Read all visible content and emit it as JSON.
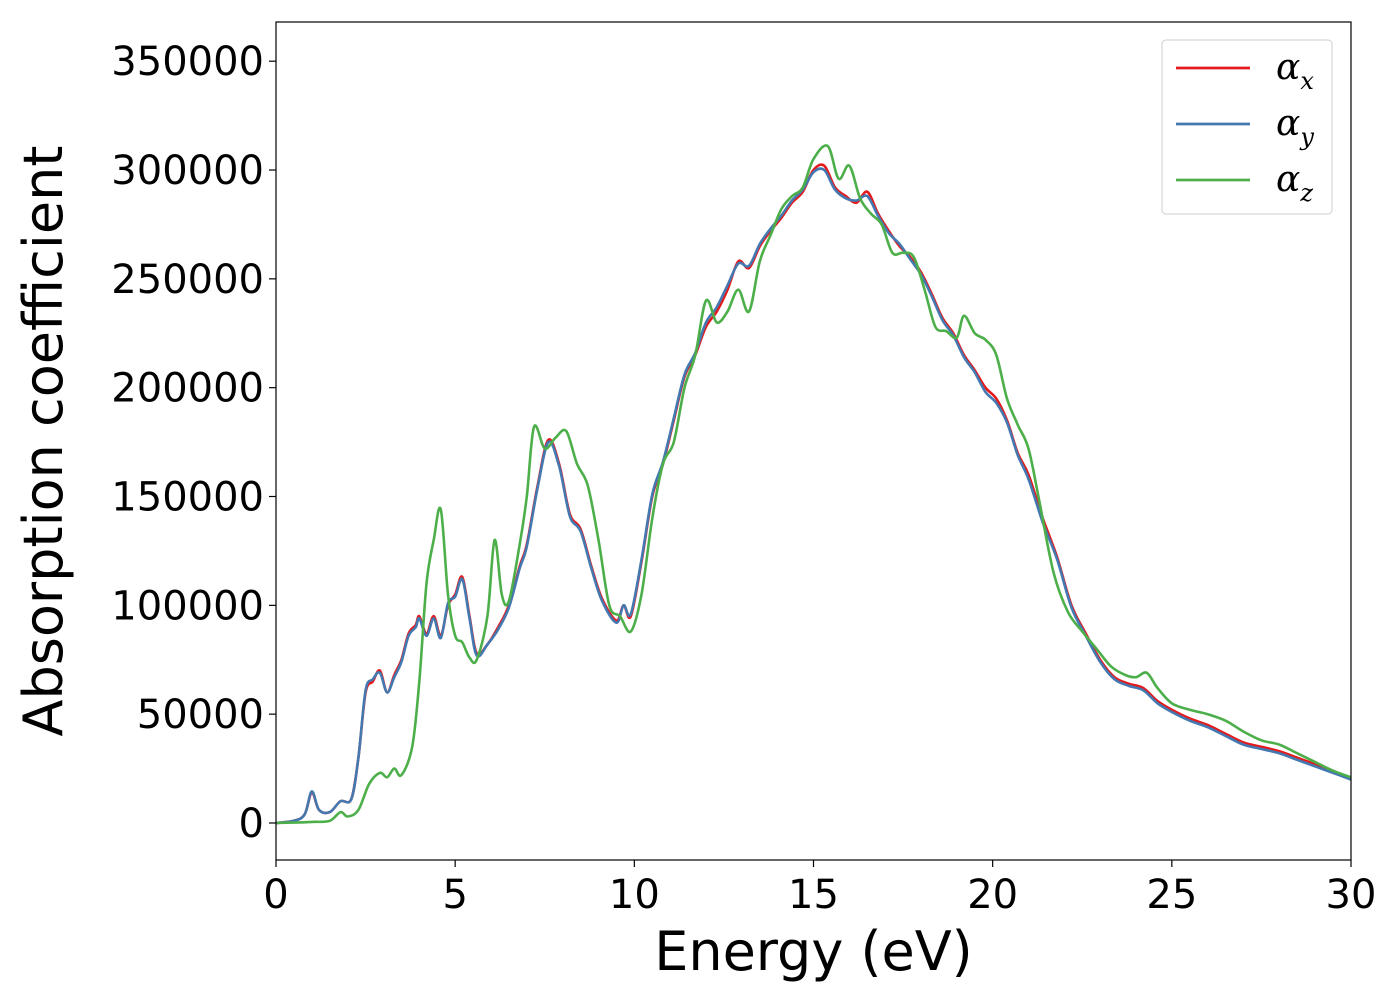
{
  "chart_data": {
    "type": "line",
    "xlabel": "Energy (eV)",
    "ylabel": "Absorption coefficient",
    "xlim": [
      0,
      30
    ],
    "ylim": [
      -17000,
      368000
    ],
    "xticks": [
      0,
      5,
      10,
      15,
      20,
      25,
      30
    ],
    "yticks": [
      0,
      50000,
      100000,
      150000,
      200000,
      250000,
      300000,
      350000
    ],
    "grid": false,
    "legend_position": "top-right",
    "series": [
      {
        "name": "α",
        "subscript": "x",
        "color": "#e41a1c",
        "x": [
          0,
          0.5,
          0.8,
          1.0,
          1.2,
          1.5,
          1.8,
          2.1,
          2.3,
          2.5,
          2.7,
          2.9,
          3.1,
          3.3,
          3.5,
          3.7,
          3.9,
          4.0,
          4.2,
          4.4,
          4.6,
          4.8,
          5.0,
          5.2,
          5.4,
          5.6,
          5.9,
          6.2,
          6.5,
          6.8,
          7.0,
          7.3,
          7.6,
          7.9,
          8.2,
          8.5,
          8.8,
          9.1,
          9.5,
          9.7,
          9.9,
          10.2,
          10.5,
          10.8,
          11.1,
          11.4,
          11.7,
          12.0,
          12.3,
          12.6,
          12.9,
          13.2,
          13.5,
          13.8,
          14.1,
          14.4,
          14.7,
          15.0,
          15.3,
          15.6,
          15.9,
          16.2,
          16.5,
          16.8,
          17.1,
          17.4,
          17.7,
          18.0,
          18.3,
          18.6,
          18.9,
          19.2,
          19.5,
          19.8,
          20.1,
          20.4,
          20.7,
          21.0,
          21.4,
          21.8,
          22.2,
          22.6,
          23.0,
          23.4,
          23.8,
          24.2,
          24.6,
          25.0,
          25.5,
          26.0,
          26.5,
          27.0,
          27.5,
          28.0,
          28.5,
          29.0,
          29.5,
          30.0
        ],
        "y": [
          0,
          1000,
          4000,
          14000,
          6000,
          5000,
          10000,
          11000,
          30000,
          60000,
          65000,
          70000,
          60000,
          68000,
          75000,
          87000,
          91000,
          95000,
          87000,
          95000,
          86000,
          100000,
          105000,
          113000,
          95000,
          78000,
          82000,
          90000,
          100000,
          118000,
          128000,
          155000,
          176000,
          165000,
          142000,
          135000,
          118000,
          103000,
          93000,
          100000,
          95000,
          120000,
          150000,
          165000,
          185000,
          205000,
          215000,
          228000,
          235000,
          245000,
          258000,
          255000,
          265000,
          272000,
          278000,
          285000,
          290000,
          300000,
          302000,
          292000,
          288000,
          285000,
          290000,
          280000,
          272000,
          265000,
          260000,
          253000,
          243000,
          232000,
          225000,
          215000,
          208000,
          200000,
          195000,
          185000,
          170000,
          160000,
          140000,
          122000,
          100000,
          87000,
          75000,
          67000,
          64000,
          62000,
          56000,
          52000,
          48000,
          45000,
          41000,
          37000,
          35000,
          33000,
          30000,
          27000,
          24000,
          20000
        ]
      },
      {
        "name": "α",
        "subscript": "y",
        "color": "#4478b0",
        "x": [
          0,
          0.5,
          0.8,
          1.0,
          1.2,
          1.5,
          1.8,
          2.1,
          2.3,
          2.5,
          2.7,
          2.9,
          3.1,
          3.3,
          3.5,
          3.7,
          3.9,
          4.0,
          4.2,
          4.4,
          4.6,
          4.8,
          5.0,
          5.2,
          5.4,
          5.6,
          5.9,
          6.2,
          6.5,
          6.8,
          7.0,
          7.3,
          7.6,
          7.9,
          8.2,
          8.5,
          8.8,
          9.1,
          9.5,
          9.7,
          9.9,
          10.2,
          10.5,
          10.8,
          11.1,
          11.4,
          11.7,
          12.0,
          12.3,
          12.6,
          12.9,
          13.2,
          13.5,
          13.8,
          14.1,
          14.4,
          14.7,
          15.0,
          15.3,
          15.6,
          15.9,
          16.2,
          16.5,
          16.8,
          17.1,
          17.4,
          17.7,
          18.0,
          18.3,
          18.6,
          18.9,
          19.2,
          19.5,
          19.8,
          20.1,
          20.4,
          20.7,
          21.0,
          21.4,
          21.8,
          22.2,
          22.6,
          23.0,
          23.4,
          23.8,
          24.2,
          24.6,
          25.0,
          25.5,
          26.0,
          26.5,
          27.0,
          27.5,
          28.0,
          28.5,
          29.0,
          29.5,
          30.0
        ],
        "y": [
          0,
          1000,
          4000,
          14500,
          6000,
          5000,
          10000,
          11000,
          30000,
          61000,
          66000,
          69000,
          60000,
          67000,
          74000,
          86000,
          90000,
          94000,
          86000,
          94000,
          85000,
          101000,
          104000,
          112000,
          94000,
          77000,
          82000,
          89000,
          99000,
          117000,
          127000,
          154000,
          175000,
          164000,
          141000,
          134000,
          117000,
          102000,
          92000,
          100000,
          96000,
          121000,
          151000,
          166000,
          186000,
          206000,
          216000,
          230000,
          237000,
          247000,
          257000,
          256000,
          266000,
          273000,
          279000,
          286000,
          291000,
          299000,
          300000,
          291000,
          287000,
          286000,
          288000,
          279000,
          271000,
          266000,
          259000,
          252000,
          242000,
          231000,
          224000,
          214000,
          207000,
          198000,
          193000,
          184000,
          169000,
          158000,
          138000,
          121000,
          99000,
          86000,
          74000,
          66000,
          63000,
          61000,
          55000,
          51000,
          47000,
          44000,
          40000,
          36000,
          34000,
          32000,
          29000,
          26000,
          23000,
          20000
        ]
      },
      {
        "name": "α",
        "subscript": "z",
        "color": "#4daf4a",
        "x": [
          0,
          0.5,
          1.0,
          1.5,
          1.8,
          2.0,
          2.3,
          2.6,
          2.9,
          3.1,
          3.3,
          3.5,
          3.8,
          4.0,
          4.2,
          4.4,
          4.6,
          4.8,
          5.0,
          5.2,
          5.4,
          5.6,
          5.9,
          6.1,
          6.3,
          6.5,
          6.8,
          7.0,
          7.2,
          7.5,
          7.8,
          8.1,
          8.4,
          8.7,
          9.0,
          9.3,
          9.6,
          9.9,
          10.2,
          10.5,
          10.8,
          11.1,
          11.4,
          11.7,
          12.0,
          12.3,
          12.6,
          12.9,
          13.2,
          13.5,
          13.8,
          14.1,
          14.4,
          14.7,
          15.0,
          15.4,
          15.7,
          16.0,
          16.3,
          16.6,
          16.9,
          17.2,
          17.5,
          17.8,
          18.1,
          18.4,
          18.7,
          19.0,
          19.2,
          19.5,
          19.8,
          20.1,
          20.4,
          20.7,
          21.0,
          21.3,
          21.7,
          22.1,
          22.5,
          22.9,
          23.3,
          23.7,
          24.0,
          24.3,
          24.6,
          25.0,
          25.5,
          26.0,
          26.5,
          27.0,
          27.5,
          28.0,
          28.5,
          29.0,
          29.5,
          30.0
        ],
        "y": [
          0,
          200,
          500,
          1000,
          5000,
          3000,
          6000,
          18000,
          23000,
          21000,
          25000,
          22000,
          35000,
          65000,
          110000,
          130000,
          144000,
          105000,
          86000,
          83000,
          76000,
          75000,
          95000,
          130000,
          105000,
          102000,
          128000,
          150000,
          182000,
          172000,
          177000,
          180000,
          165000,
          155000,
          130000,
          100000,
          95000,
          88000,
          105000,
          140000,
          165000,
          175000,
          200000,
          215000,
          240000,
          230000,
          235000,
          245000,
          235000,
          258000,
          270000,
          282000,
          288000,
          292000,
          305000,
          311000,
          296000,
          302000,
          287000,
          280000,
          275000,
          262000,
          262000,
          260000,
          245000,
          228000,
          226000,
          223000,
          233000,
          225000,
          222000,
          215000,
          195000,
          183000,
          172000,
          148000,
          115000,
          97000,
          88000,
          80000,
          72000,
          68000,
          67000,
          69000,
          62000,
          55000,
          52000,
          50000,
          47000,
          42000,
          38000,
          36000,
          32000,
          28000,
          24000,
          21000
        ]
      }
    ]
  }
}
